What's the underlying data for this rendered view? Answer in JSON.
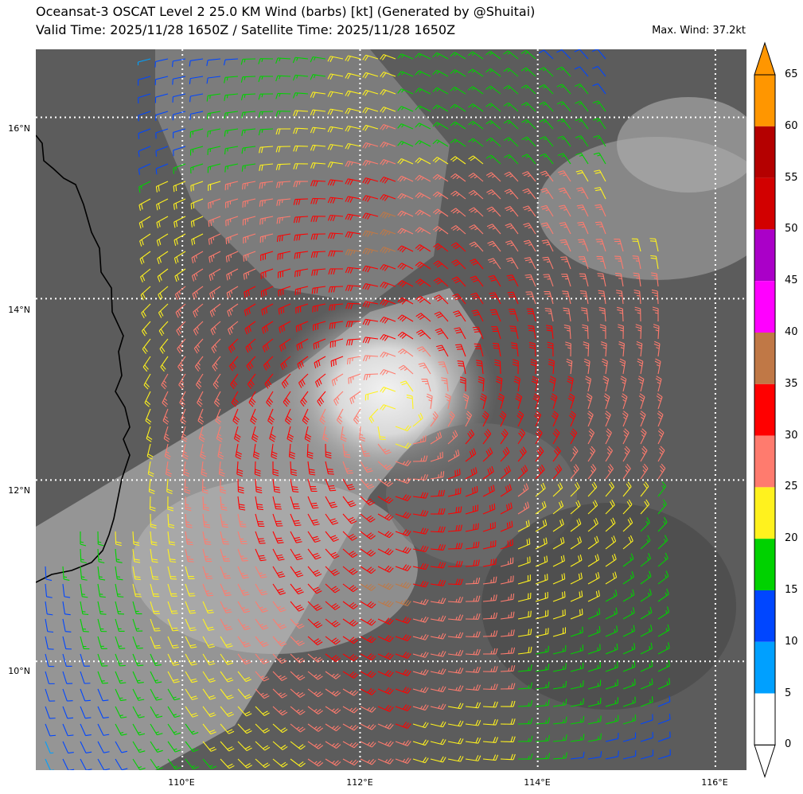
{
  "header": {
    "title_line1": "Oceansat-3 OSCAT Level 2 25.0 KM Wind (barbs) [kt] (Generated by @Shuitai)",
    "title_line2": "Valid Time: 2025/11/28 1650Z / Satellite Time: 2025/11/28 1650Z",
    "max_wind": "Max. Wind: 37.2kt"
  },
  "map": {
    "lat_labels": [
      "16°N",
      "14°N",
      "12°N",
      "10°N"
    ],
    "lon_labels": [
      "110°E",
      "112°E",
      "114°E",
      "116°E"
    ],
    "lat_range": [
      8.8,
      16.75
    ],
    "lon_range": [
      108.35,
      116.35
    ],
    "center_lon": 112.4,
    "center_lat": 12.7
  },
  "colorbar": {
    "ticks": [
      "0",
      "5",
      "10",
      "15",
      "20",
      "25",
      "30",
      "35",
      "40",
      "45",
      "50",
      "55",
      "60",
      "65"
    ],
    "bins": [
      {
        "from": 0,
        "to": 5,
        "color": "#ffffff"
      },
      {
        "from": 5,
        "to": 10,
        "color": "#00a0ff"
      },
      {
        "from": 10,
        "to": 15,
        "color": "#0046ff"
      },
      {
        "from": 15,
        "to": 20,
        "color": "#00d200"
      },
      {
        "from": 20,
        "to": 25,
        "color": "#fff21e"
      },
      {
        "from": 25,
        "to": 30,
        "color": "#ff7b6e"
      },
      {
        "from": 30,
        "to": 35,
        "color": "#ff0000"
      },
      {
        "from": 35,
        "to": 40,
        "color": "#c07846"
      },
      {
        "from": 40,
        "to": 45,
        "color": "#ff00ff"
      },
      {
        "from": 45,
        "to": 50,
        "color": "#aa00c8"
      },
      {
        "from": 50,
        "to": 55,
        "color": "#d20000"
      },
      {
        "from": 55,
        "to": 60,
        "color": "#b40000"
      },
      {
        "from": 60,
        "to": 65,
        "color": "#ff9600"
      }
    ],
    "under_color": "#ffffff",
    "over_color": "#ff9600"
  }
}
